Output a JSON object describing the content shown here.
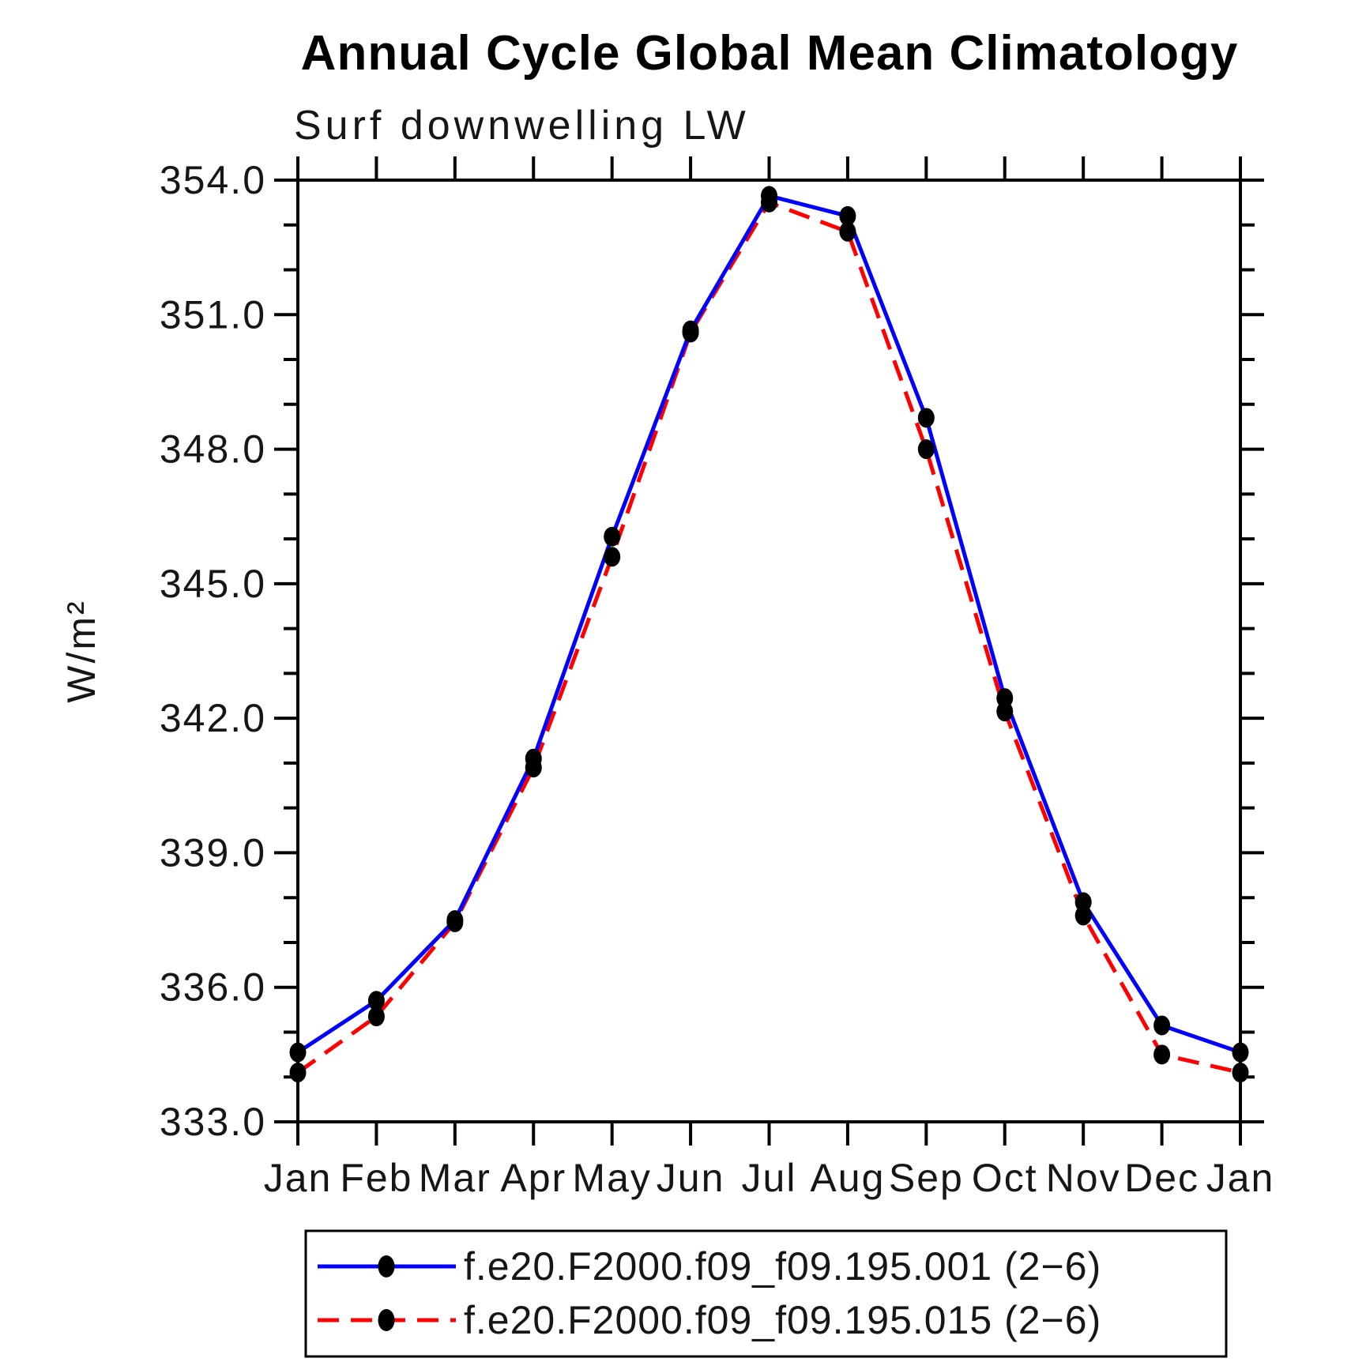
{
  "page": {
    "background": "#ffffff"
  },
  "chart_data": {
    "type": "line",
    "title": "Annual Cycle Global Mean Climatology",
    "subtitle": "Surf downwelling LW",
    "ylabel": "W/m²",
    "xlabel": "",
    "x_categories": [
      "Jan",
      "Feb",
      "Mar",
      "Apr",
      "May",
      "Jun",
      "Jul",
      "Aug",
      "Sep",
      "Oct",
      "Nov",
      "Dec",
      "Jan"
    ],
    "ylim": [
      333.0,
      354.0
    ],
    "y_major_tick_step": 3.0,
    "y_minor_tick_step": 1.0,
    "y_major_ticks": [
      333.0,
      336.0,
      339.0,
      342.0,
      345.0,
      348.0,
      351.0,
      354.0
    ],
    "grid": false,
    "legend_position": "bottom-left-box",
    "axis_color": "#000000",
    "text_color": "#161616",
    "marker_shape": "filled-ellipse",
    "series": [
      {
        "name": "f.e20.F2000.f09_f09.195.001 (2−6)",
        "color": "#0000ff",
        "line_style": "solid",
        "marker_color": "#000000",
        "values": [
          334.55,
          335.7,
          337.5,
          341.1,
          346.05,
          350.65,
          353.65,
          353.2,
          348.7,
          342.45,
          337.9,
          335.15,
          334.55
        ]
      },
      {
        "name": "f.e20.F2000.f09_f09.195.015 (2−6)",
        "color": "#ff0000",
        "line_style": "dashed",
        "marker_color": "#000000",
        "values": [
          334.1,
          335.35,
          337.45,
          340.9,
          345.6,
          350.6,
          353.5,
          352.85,
          348.0,
          342.15,
          337.6,
          334.5,
          334.1
        ]
      }
    ]
  }
}
